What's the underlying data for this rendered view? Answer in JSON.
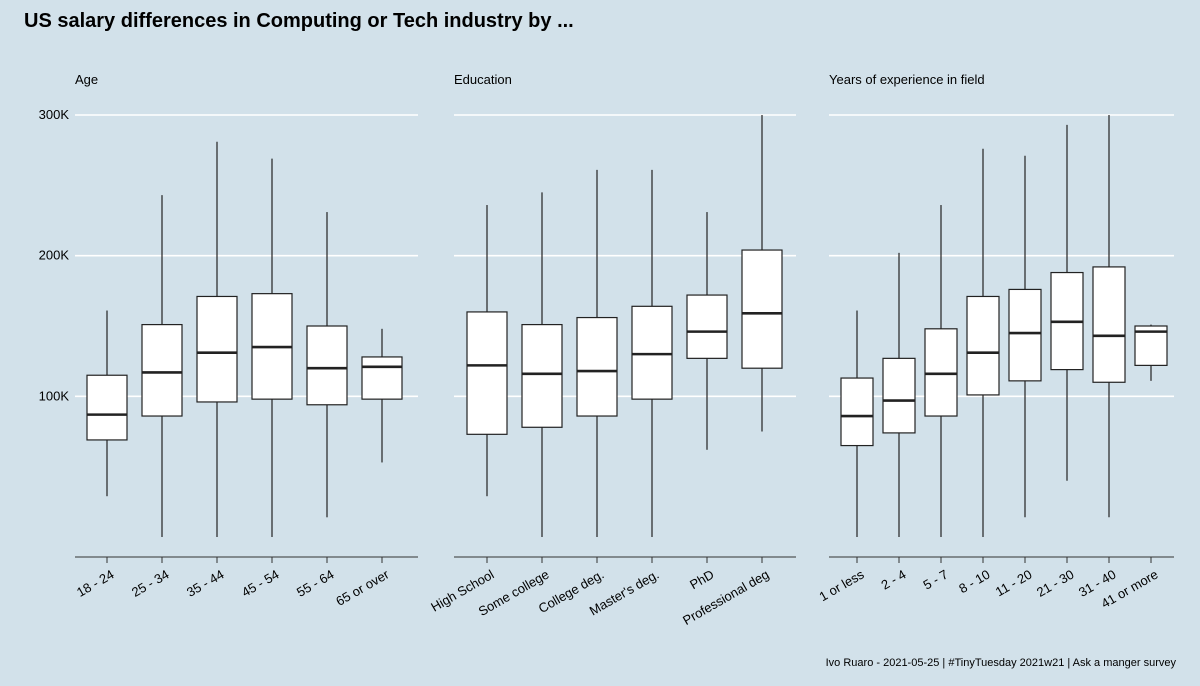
{
  "title": "US salary differences in Computing or Tech industry by ...",
  "caption": "Ivo Ruaro - 2021-05-25 | #TinyTuesday 2021w21 | Ask a manger survey",
  "colors": {
    "background": "#d2e1ea",
    "gridline": "#ffffff",
    "box_fill": "#ffffff",
    "box_stroke": "#222222"
  },
  "chart_data": [
    {
      "type": "boxplot",
      "panel_title": "Age",
      "ylim": [
        0,
        300000
      ],
      "y_ticks": [
        100000,
        200000,
        300000
      ],
      "y_tick_labels": [
        "100K",
        "200K",
        "300K"
      ],
      "grid": true,
      "categories": [
        "18 - 24",
        "25 - 34",
        "35 - 44",
        "45 - 54",
        "55 - 64",
        "65 or over"
      ],
      "boxes": [
        {
          "min": 29000,
          "q1": 69000,
          "median": 87000,
          "q3": 115000,
          "max": 161000
        },
        {
          "min": 0,
          "q1": 86000,
          "median": 117000,
          "q3": 151000,
          "max": 243000
        },
        {
          "min": 0,
          "q1": 96000,
          "median": 131000,
          "q3": 171000,
          "max": 281000
        },
        {
          "min": 0,
          "q1": 98000,
          "median": 135000,
          "q3": 173000,
          "max": 269000
        },
        {
          "min": 14000,
          "q1": 94000,
          "median": 120000,
          "q3": 150000,
          "max": 231000
        },
        {
          "min": 53000,
          "q1": 98000,
          "median": 121000,
          "q3": 128000,
          "max": 148000
        }
      ]
    },
    {
      "type": "boxplot",
      "panel_title": "Education",
      "ylim": [
        0,
        300000
      ],
      "y_ticks": [
        100000,
        200000,
        300000
      ],
      "grid": true,
      "categories": [
        "High School",
        "Some college",
        "College deg.",
        "Master's deg.",
        "PhD",
        "Professional deg"
      ],
      "boxes": [
        {
          "min": 29000,
          "q1": 73000,
          "median": 122000,
          "q3": 160000,
          "max": 236000
        },
        {
          "min": 0,
          "q1": 78000,
          "median": 116000,
          "q3": 151000,
          "max": 245000
        },
        {
          "min": 0,
          "q1": 86000,
          "median": 118000,
          "q3": 156000,
          "max": 261000
        },
        {
          "min": 0,
          "q1": 98000,
          "median": 130000,
          "q3": 164000,
          "max": 261000
        },
        {
          "min": 62000,
          "q1": 127000,
          "median": 146000,
          "q3": 172000,
          "max": 231000
        },
        {
          "min": 75000,
          "q1": 120000,
          "median": 159000,
          "q3": 204000,
          "max": 300000
        }
      ]
    },
    {
      "type": "boxplot",
      "panel_title": "Years of experience in field",
      "ylim": [
        0,
        300000
      ],
      "y_ticks": [
        100000,
        200000,
        300000
      ],
      "grid": true,
      "categories": [
        "1 or less",
        "2 - 4",
        "5 - 7",
        "8 - 10",
        "11 - 20",
        "21 - 30",
        "31 - 40",
        "41 or more"
      ],
      "boxes": [
        {
          "min": 0,
          "q1": 65000,
          "median": 86000,
          "q3": 113000,
          "max": 161000
        },
        {
          "min": 0,
          "q1": 74000,
          "median": 97000,
          "q3": 127000,
          "max": 202000
        },
        {
          "min": 0,
          "q1": 86000,
          "median": 116000,
          "q3": 148000,
          "max": 236000
        },
        {
          "min": 0,
          "q1": 101000,
          "median": 131000,
          "q3": 171000,
          "max": 276000
        },
        {
          "min": 14000,
          "q1": 111000,
          "median": 145000,
          "q3": 176000,
          "max": 271000
        },
        {
          "min": 40000,
          "q1": 119000,
          "median": 153000,
          "q3": 188000,
          "max": 293000
        },
        {
          "min": 14000,
          "q1": 110000,
          "median": 143000,
          "q3": 192000,
          "max": 300000
        },
        {
          "min": 111000,
          "q1": 122000,
          "median": 146000,
          "q3": 150000,
          "max": 151000
        }
      ]
    }
  ]
}
